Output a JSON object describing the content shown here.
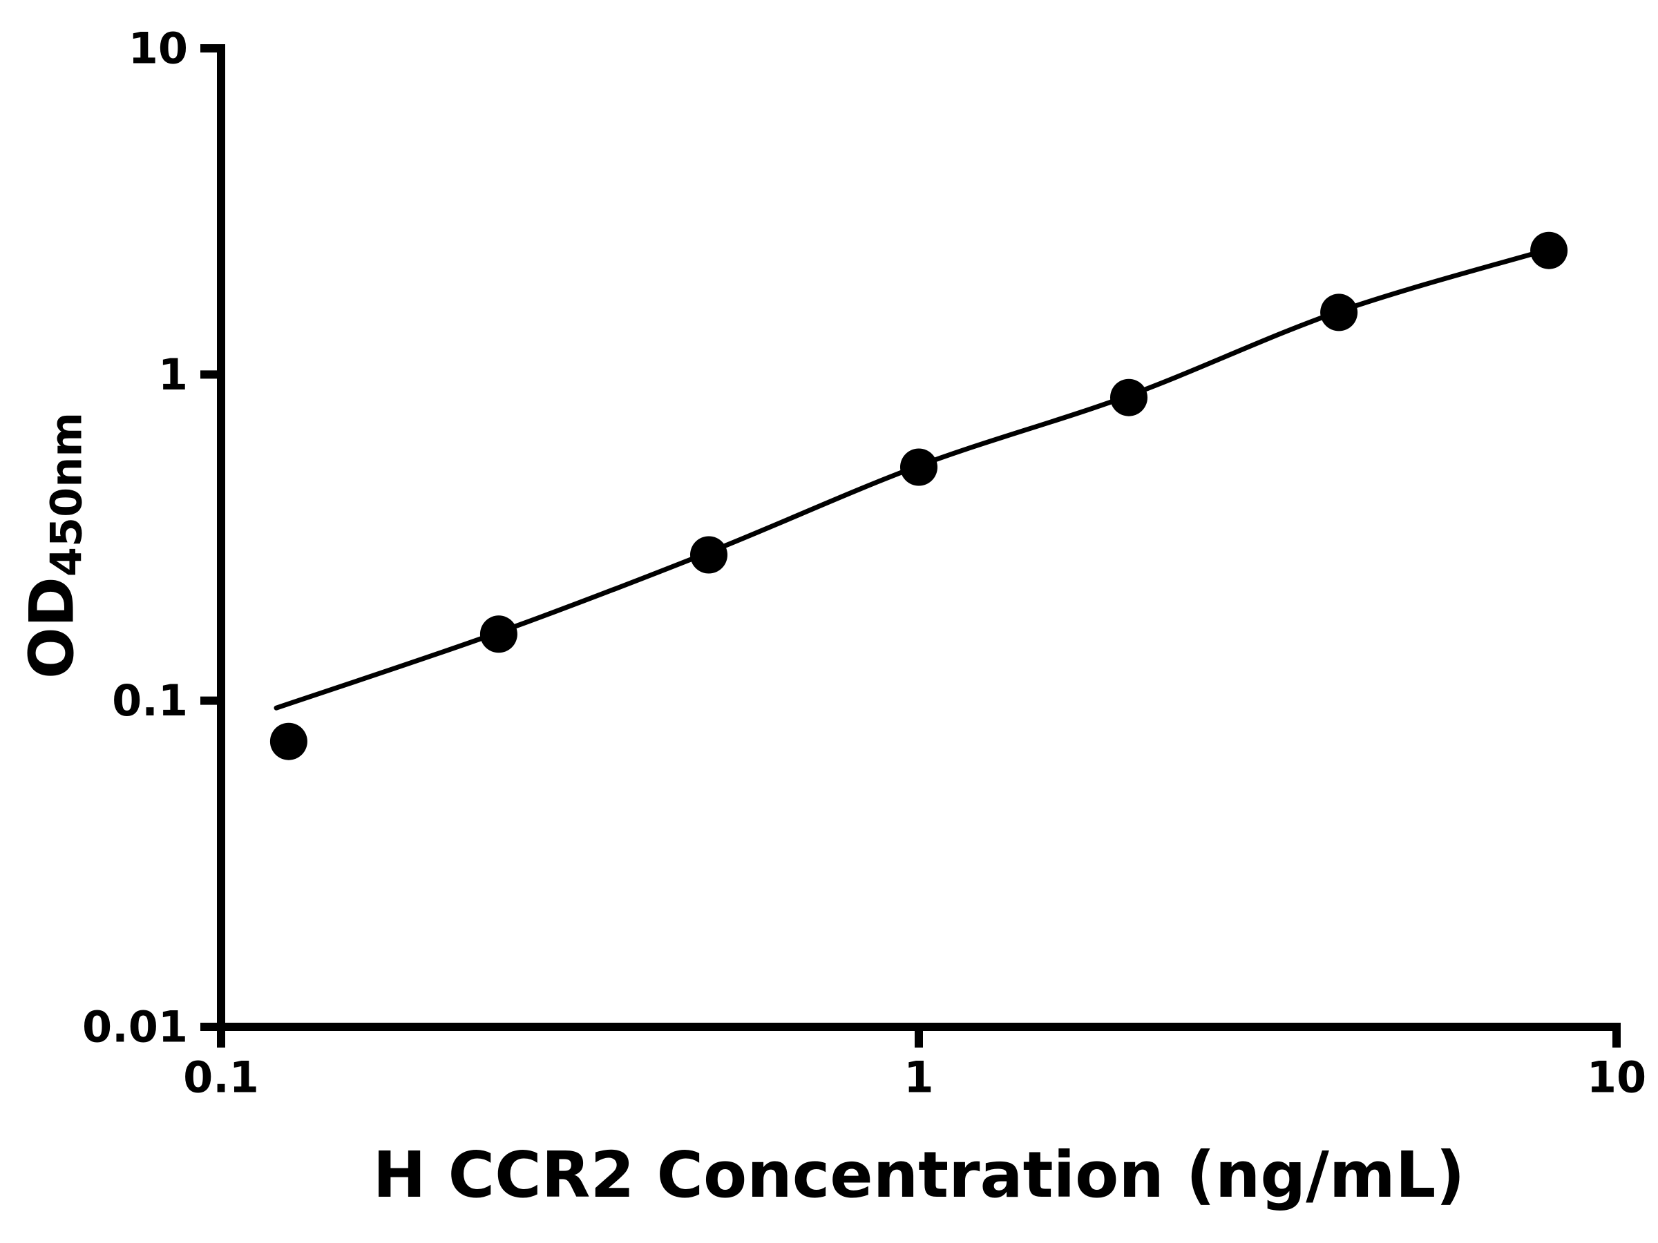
{
  "chart_data": {
    "type": "scatter",
    "title": "",
    "xlabel": "H CCR2 Concentration (ng/mL)",
    "ylabel_main": "OD",
    "ylabel_sub": "450nm",
    "x_scale": "log",
    "y_scale": "log",
    "xlim": [
      0.1,
      10
    ],
    "ylim": [
      0.01,
      10
    ],
    "grid": false,
    "legend": "none",
    "x_ticks": [
      {
        "v": 0.1,
        "label": "0.1"
      },
      {
        "v": 1,
        "label": "1"
      },
      {
        "v": 10,
        "label": "10"
      }
    ],
    "y_ticks": [
      {
        "v": 0.01,
        "label": "0.01"
      },
      {
        "v": 0.1,
        "label": "0.1"
      },
      {
        "v": 1,
        "label": "1"
      },
      {
        "v": 10,
        "label": "10"
      }
    ],
    "points": [
      {
        "x": 0.125,
        "y": 0.075
      },
      {
        "x": 0.25,
        "y": 0.16
      },
      {
        "x": 0.5,
        "y": 0.28
      },
      {
        "x": 1.0,
        "y": 0.52
      },
      {
        "x": 2.0,
        "y": 0.85
      },
      {
        "x": 4.0,
        "y": 1.55
      },
      {
        "x": 8.0,
        "y": 2.4
      }
    ],
    "fit_curve": [
      [
        0.12,
        0.095
      ],
      [
        0.25,
        0.162
      ],
      [
        0.5,
        0.285
      ],
      [
        1.0,
        0.525
      ],
      [
        2.0,
        0.862
      ],
      [
        4.0,
        1.56
      ],
      [
        8.0,
        2.42
      ]
    ],
    "colors": {
      "marker": "#000000",
      "line": "#000000",
      "axis": "#000000",
      "background": "#ffffff"
    }
  }
}
